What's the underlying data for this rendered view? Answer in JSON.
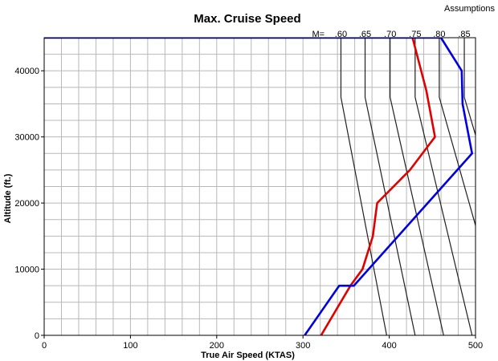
{
  "header": {
    "assumptions_label": "Assumptions"
  },
  "chart_data": {
    "type": "line",
    "title": "Max. Cruise Speed",
    "xlabel": "True Air Speed (KTAS)",
    "ylabel": "Altitude (ft.)",
    "xlim": [
      0,
      500
    ],
    "ylim": [
      0,
      45000
    ],
    "x_ticks": [
      "0",
      "100",
      "200",
      "300",
      "400",
      "500"
    ],
    "y_ticks": [
      "0",
      "10000",
      "20000",
      "30000",
      "40000"
    ],
    "grid": true,
    "mach_prefix": "M=",
    "mach_lines": [
      {
        "label": ".60",
        "points": [
          [
            397,
            0
          ],
          [
            344,
            36000
          ],
          [
            344,
            45000
          ]
        ]
      },
      {
        "label": ".65",
        "points": [
          [
            430,
            0
          ],
          [
            372,
            36000
          ],
          [
            372,
            45000
          ]
        ]
      },
      {
        "label": ".70",
        "points": [
          [
            463,
            0
          ],
          [
            401,
            36000
          ],
          [
            401,
            45000
          ]
        ]
      },
      {
        "label": ".75",
        "points": [
          [
            496,
            0
          ],
          [
            430,
            36000
          ],
          [
            430,
            45000
          ]
        ]
      },
      {
        "label": ".80",
        "points": [
          [
            536,
            0
          ],
          [
            458,
            36000
          ],
          [
            458,
            45000
          ]
        ]
      },
      {
        "label": ".85",
        "points": [
          [
            569,
            0
          ],
          [
            487,
            36000
          ],
          [
            487,
            45000
          ]
        ]
      }
    ],
    "series": [
      {
        "color": "#e00000",
        "points": [
          [
            321,
            0
          ],
          [
            355,
            7500
          ],
          [
            369,
            10000
          ],
          [
            381,
            15000
          ],
          [
            386,
            20000
          ],
          [
            424,
            25000
          ],
          [
            453,
            30000
          ],
          [
            443,
            37000
          ],
          [
            437,
            40000
          ],
          [
            427,
            45000
          ]
        ]
      },
      {
        "color": "#0000e0",
        "points": [
          [
            302,
            0
          ],
          [
            342,
            7500
          ],
          [
            359,
            7500
          ],
          [
            496,
            27500
          ],
          [
            485,
            35000
          ],
          [
            484,
            40000
          ],
          [
            460,
            45000
          ],
          [
            0,
            45000
          ]
        ]
      }
    ]
  }
}
